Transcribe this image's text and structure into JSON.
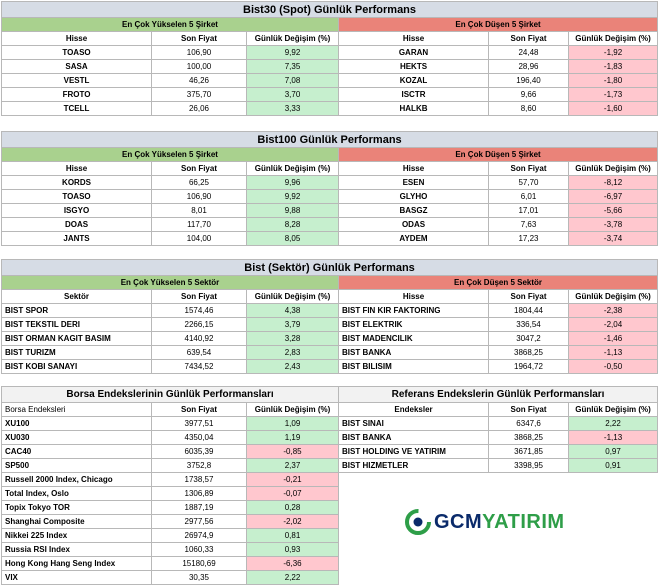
{
  "bist30": {
    "title": "Bist30 (Spot) Günlük Performans",
    "up_header": "En Çok Yükselen 5 Şirket",
    "down_header": "En Çok Düşen 5 Şirket",
    "col_hisse": "Hisse",
    "col_fiyat": "Son Fiyat",
    "col_degisim": "Günlük Değişim (%)",
    "up": [
      [
        "TOASO",
        "106,90",
        "9,92"
      ],
      [
        "SASA",
        "100,00",
        "7,35"
      ],
      [
        "VESTL",
        "46,26",
        "7,08"
      ],
      [
        "FROTO",
        "375,70",
        "3,70"
      ],
      [
        "TCELL",
        "26,06",
        "3,33"
      ]
    ],
    "down": [
      [
        "GARAN",
        "24,48",
        "-1,92"
      ],
      [
        "HEKTS",
        "28,96",
        "-1,83"
      ],
      [
        "KOZAL",
        "196,40",
        "-1,80"
      ],
      [
        "ISCTR",
        "9,66",
        "-1,73"
      ],
      [
        "HALKB",
        "8,60",
        "-1,60"
      ]
    ]
  },
  "bist100": {
    "title": "Bist100 Günlük Performans",
    "up_header": "En Çok Yükselen 5 Şirket",
    "down_header": "En Çok Düşen 5 Şirket",
    "col_hisse": "Hisse",
    "col_fiyat": "Son Fiyat",
    "col_degisim": "Günlük Değişim (%)",
    "up": [
      [
        "KORDS",
        "66,25",
        "9,96"
      ],
      [
        "TOASO",
        "106,90",
        "9,92"
      ],
      [
        "ISGYO",
        "8,01",
        "9,88"
      ],
      [
        "DOAS",
        "117,70",
        "8,28"
      ],
      [
        "JANTS",
        "104,00",
        "8,05"
      ]
    ],
    "down": [
      [
        "ESEN",
        "57,70",
        "-8,12"
      ],
      [
        "GLYHO",
        "6,01",
        "-6,97"
      ],
      [
        "BASGZ",
        "17,01",
        "-5,66"
      ],
      [
        "ODAS",
        "7,63",
        "-3,78"
      ],
      [
        "AYDEM",
        "17,23",
        "-3,74"
      ]
    ]
  },
  "sektor": {
    "title": "Bist (Sektör) Günlük Performans",
    "up_header": "En Çok Yükselen 5 Sektör",
    "down_header": "En Çok Düşen 5 Sektör",
    "col_sektor": "Sektör",
    "col_hisse": "Hisse",
    "col_fiyat": "Son Fiyat",
    "col_degisim": "Günlük Değişim (%)",
    "up": [
      [
        "BIST SPOR",
        "1574,46",
        "4,38"
      ],
      [
        "BIST TEKSTIL DERI",
        "2266,15",
        "3,79"
      ],
      [
        "BIST ORMAN KAGIT BASIM",
        "4140,92",
        "3,28"
      ],
      [
        "BIST TURIZM",
        "639,54",
        "2,83"
      ],
      [
        "BIST KOBI SANAYI",
        "7434,52",
        "2,43"
      ]
    ],
    "down": [
      [
        "BIST FIN KIR FAKTORING",
        "1804,44",
        "-2,38"
      ],
      [
        "BIST ELEKTRIK",
        "336,54",
        "-2,04"
      ],
      [
        "BIST MADENCILIK",
        "3047,2",
        "-1,46"
      ],
      [
        "BIST BANKA",
        "3868,25",
        "-1,13"
      ],
      [
        "BIST BILISIM",
        "1964,72",
        "-0,50"
      ]
    ]
  },
  "borsa": {
    "title": "Borsa Endekslerinin Günlük Performansları",
    "col_endeks": "Borsa Endeksleri",
    "col_fiyat": "Son Fiyat",
    "col_degisim": "Günlük Değişim (%)",
    "rows": [
      [
        "XU100",
        "3977,51",
        "1,09"
      ],
      [
        "XU030",
        "4350,04",
        "1,19"
      ],
      [
        "CAC40",
        "6035,39",
        "-0,85"
      ],
      [
        "SP500",
        "3752,8",
        "2,37"
      ],
      [
        "Russell 2000 Index, Chicago",
        "1738,57",
        "-0,21"
      ],
      [
        "Total Index, Oslo",
        "1306,89",
        "-0,07"
      ],
      [
        "Topix Tokyo TOR",
        "1887,19",
        "0,28"
      ],
      [
        "Shanghai Composite",
        "2977,56",
        "-2,02"
      ],
      [
        "Nikkei 225 Index",
        "26974,9",
        "0,81"
      ],
      [
        "Russia RSI Index",
        "1060,33",
        "0,93"
      ],
      [
        "Hong Kong Hang Seng Index",
        "15180,69",
        "-6,36"
      ],
      [
        "VIX",
        "30,35",
        "2,22"
      ]
    ]
  },
  "referans": {
    "title": "Referans Endekslerin  Günlük Performansları",
    "col_endeks": "Endeksler",
    "col_fiyat": "Son Fiyat",
    "col_degisim": "Günlük Değişim (%)",
    "rows": [
      [
        "BIST SINAI",
        "6347,6",
        "2,22"
      ],
      [
        "BIST BANKA",
        "3868,25",
        "-1,13"
      ],
      [
        "BIST HOLDING VE YATIRIM",
        "3671,85",
        "0,97"
      ],
      [
        "BIST HIZMETLER",
        "3398,95",
        "0,91"
      ]
    ]
  },
  "logo": {
    "text_gcm": "GCM",
    "text_yatirim": "YATIRIM",
    "color_gcm": "#0a2a6a",
    "color_yatirim": "#2e9e48"
  }
}
